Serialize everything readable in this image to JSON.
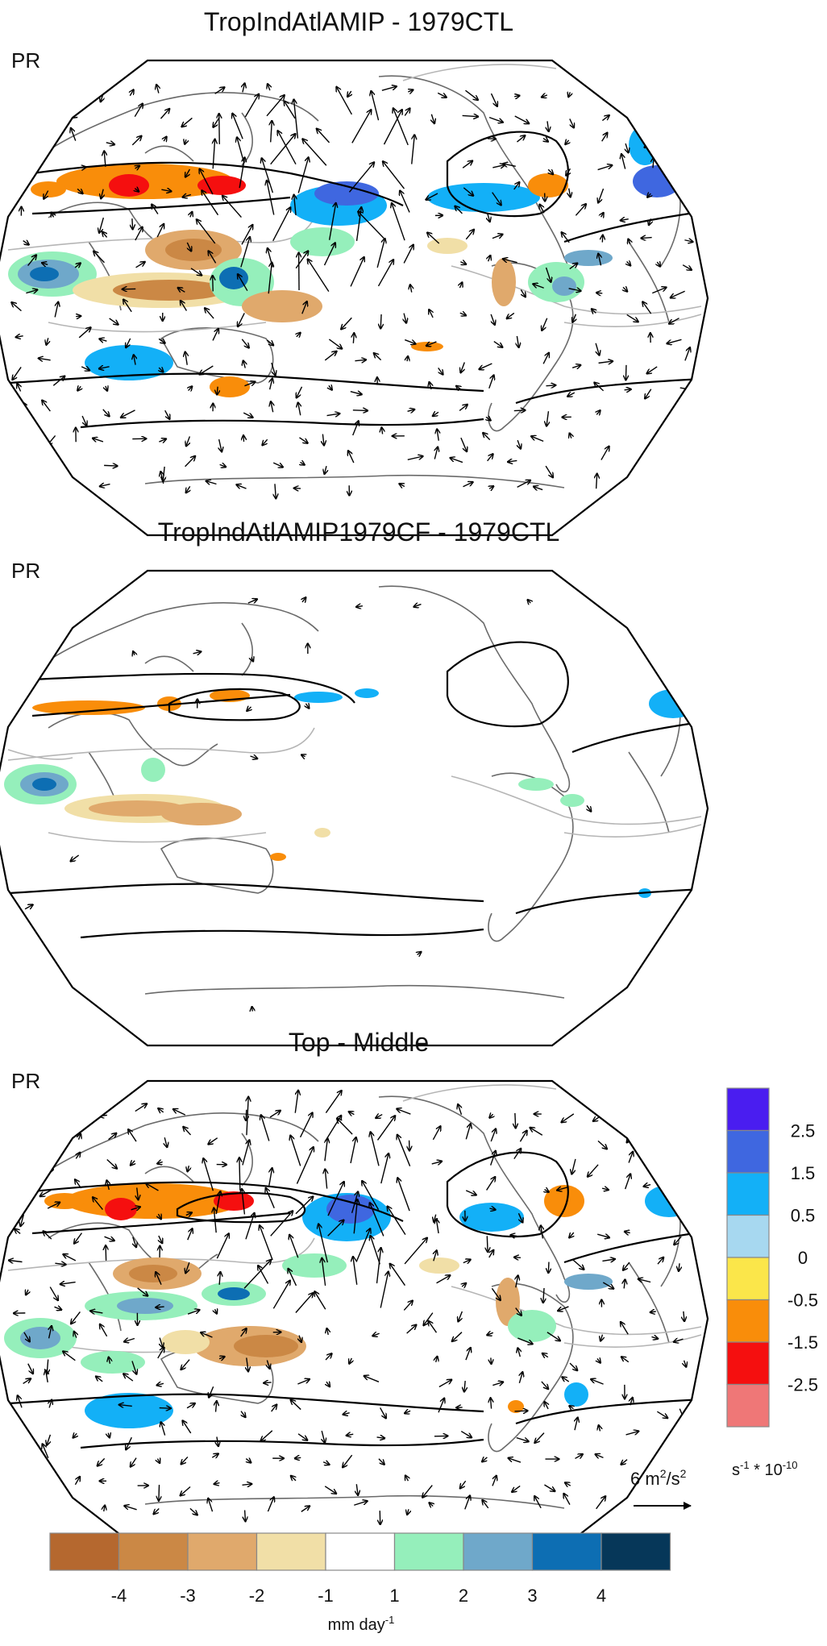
{
  "panels": [
    {
      "title": "TropIndAtlAMIP - 1979CTL",
      "variable": "PR",
      "wind_vectors": "dense"
    },
    {
      "title": "TropIndAtlAMIP1979CF - 1979CTL",
      "variable": "PR",
      "wind_vectors": "sparse"
    },
    {
      "title": "Top - Middle",
      "variable": "PR",
      "wind_vectors": "dense"
    }
  ],
  "precip_colorbar": {
    "unit_base": "mm day",
    "unit_exp": "-1",
    "colors": [
      "#b5682f",
      "#cb8845",
      "#e0a96c",
      "#f1dfa7",
      "#ffffff",
      "#95efbb",
      "#6fa8ca",
      "#0d6eb3",
      "#063759"
    ],
    "tick_labels": [
      "-4",
      "-3",
      "-2",
      "-1",
      "1",
      "2",
      "3",
      "4"
    ]
  },
  "vorticity_colorbar": {
    "unit_base": "s",
    "unit_exp": "-1",
    "unit_suffix": " * 10",
    "unit_suffix_exp": "-10",
    "colors": [
      "#4a1df0",
      "#3f67e0",
      "#13b0f7",
      "#a7d8f0",
      "#fbe64a",
      "#f98d0a",
      "#f50f0f",
      "#ef7777"
    ],
    "tick_labels": [
      "2.5",
      "1.5",
      "0.5",
      "0",
      "-0.5",
      "-1.5",
      "-2.5"
    ]
  },
  "vector_reference": {
    "magnitude": "6",
    "unit_base": "m",
    "unit_exp1": "2",
    "unit_mid": "/s",
    "unit_exp2": "2"
  }
}
